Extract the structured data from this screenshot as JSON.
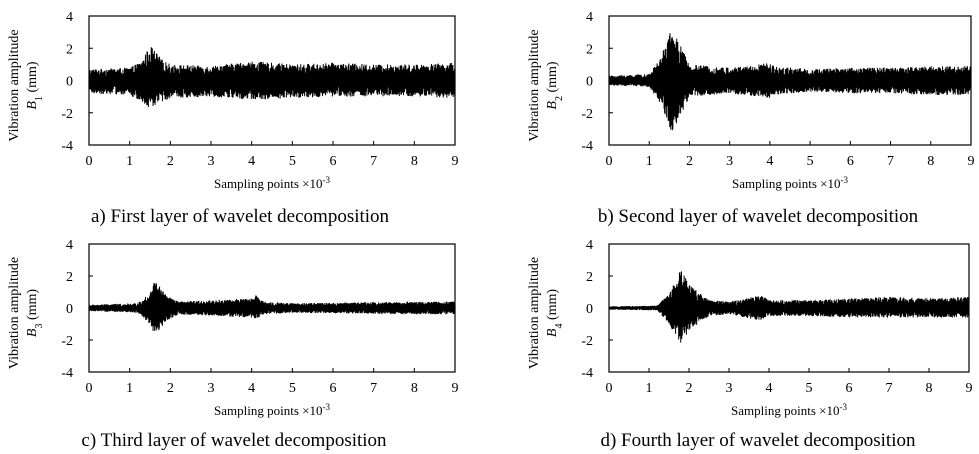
{
  "panels": [
    {
      "caption": "a) First layer of wavelet decomposition",
      "ylabel_line1": "Vibration amplitude",
      "ylabel_var": "B",
      "ylabel_sub": "1",
      "ylabel_unit": " (mm)",
      "xlabel": "Sampling points ×10",
      "xlabel_sup": "-3"
    },
    {
      "caption": "b) Second layer of wavelet decomposition",
      "ylabel_line1": "Vibration amplitude",
      "ylabel_var": "B",
      "ylabel_sub": "2",
      "ylabel_unit": " (mm)",
      "xlabel": "Sampling points ×10",
      "xlabel_sup": "-3"
    },
    {
      "caption": "c) Third layer of wavelet decomposition",
      "ylabel_line1": "Vibration amplitude",
      "ylabel_var": "B",
      "ylabel_sub": "3",
      "ylabel_unit": " (mm)",
      "xlabel": "Sampling points ×10",
      "xlabel_sup": "-3"
    },
    {
      "caption": "d) Fourth layer of wavelet decomposition",
      "ylabel_line1": "Vibration amplitude",
      "ylabel_var": "B",
      "ylabel_sub": "4",
      "ylabel_unit": " (mm)",
      "xlabel": "Sampling points ×10",
      "xlabel_sup": "-3"
    }
  ],
  "chart_data": [
    {
      "type": "line",
      "xlim": [
        0,
        9
      ],
      "ylim": [
        -4,
        4
      ],
      "xticks": [
        "0",
        "1",
        "2",
        "3",
        "4",
        "5",
        "6",
        "7",
        "8",
        "9"
      ],
      "yticks": [
        "4",
        "2",
        "0",
        "-2",
        "-4"
      ],
      "grid": false,
      "envelope": {
        "x": [
          0,
          1.0,
          1.3,
          1.5,
          1.6,
          1.8,
          2.0,
          3.0,
          4.0,
          5.0,
          6.0,
          7.0,
          8.0,
          9.0
        ],
        "max": [
          0.7,
          0.8,
          1.2,
          2.2,
          1.9,
          1.3,
          1.0,
          0.9,
          1.2,
          1.0,
          1.1,
          1.0,
          1.0,
          1.1
        ],
        "min": [
          -0.8,
          -0.9,
          -1.4,
          -1.8,
          -1.6,
          -1.3,
          -1.1,
          -1.0,
          -1.2,
          -1.1,
          -1.0,
          -1.0,
          -1.0,
          -1.1
        ]
      }
    },
    {
      "type": "line",
      "xlim": [
        0,
        9
      ],
      "ylim": [
        -4,
        4
      ],
      "xticks": [
        "0",
        "1",
        "2",
        "3",
        "4",
        "5",
        "6",
        "7",
        "8",
        "9"
      ],
      "yticks": [
        "4",
        "2",
        "0",
        "-2",
        "-4"
      ],
      "grid": false,
      "envelope": {
        "x": [
          0,
          1.0,
          1.3,
          1.5,
          1.6,
          1.7,
          2.0,
          3.0,
          4.0,
          4.1,
          5.0,
          6.0,
          7.0,
          8.0,
          9.0
        ],
        "max": [
          0.3,
          0.4,
          1.5,
          3.0,
          3.0,
          2.6,
          1.0,
          0.8,
          1.1,
          0.9,
          0.7,
          0.8,
          0.8,
          0.9,
          0.9
        ],
        "min": [
          -0.3,
          -0.4,
          -1.5,
          -3.1,
          -3.2,
          -2.6,
          -1.0,
          -0.8,
          -1.1,
          -0.9,
          -0.7,
          -0.8,
          -0.8,
          -0.9,
          -0.9
        ]
      }
    },
    {
      "type": "line",
      "xlim": [
        0,
        9
      ],
      "ylim": [
        -4,
        4
      ],
      "xticks": [
        "0",
        "1",
        "2",
        "3",
        "4",
        "5",
        "6",
        "7",
        "8",
        "9"
      ],
      "yticks": [
        "4",
        "2",
        "0",
        "-2",
        "-4"
      ],
      "grid": false,
      "envelope": {
        "x": [
          0,
          1.2,
          1.5,
          1.6,
          1.7,
          1.9,
          2.2,
          4.0,
          4.1,
          4.3,
          5.0,
          8.0,
          9.0
        ],
        "max": [
          0.2,
          0.3,
          1.0,
          1.7,
          1.5,
          0.8,
          0.4,
          0.6,
          0.8,
          0.4,
          0.3,
          0.4,
          0.4
        ],
        "min": [
          -0.2,
          -0.3,
          -1.0,
          -1.6,
          -1.5,
          -0.8,
          -0.4,
          -0.6,
          -0.7,
          -0.4,
          -0.3,
          -0.4,
          -0.4
        ]
      }
    },
    {
      "type": "line",
      "xlim": [
        0,
        9
      ],
      "ylim": [
        -4,
        4
      ],
      "xticks": [
        "0",
        "1",
        "2",
        "3",
        "4",
        "5",
        "6",
        "7",
        "8",
        "9"
      ],
      "yticks": [
        "4",
        "2",
        "0",
        "-2",
        "-4"
      ],
      "grid": false,
      "envelope": {
        "x": [
          0,
          1.2,
          1.5,
          1.8,
          1.9,
          2.0,
          2.5,
          3.0,
          3.8,
          4.0,
          5.0,
          6.0,
          7.0,
          8.0,
          9.0
        ],
        "max": [
          0.1,
          0.15,
          0.9,
          2.4,
          2.0,
          1.5,
          0.5,
          0.4,
          0.8,
          0.5,
          0.5,
          0.6,
          0.7,
          0.6,
          0.7
        ],
        "min": [
          -0.1,
          -0.15,
          -1.0,
          -2.3,
          -1.9,
          -1.4,
          -0.5,
          -0.4,
          -0.8,
          -0.5,
          -0.5,
          -0.6,
          -0.6,
          -0.6,
          -0.6
        ]
      }
    }
  ]
}
